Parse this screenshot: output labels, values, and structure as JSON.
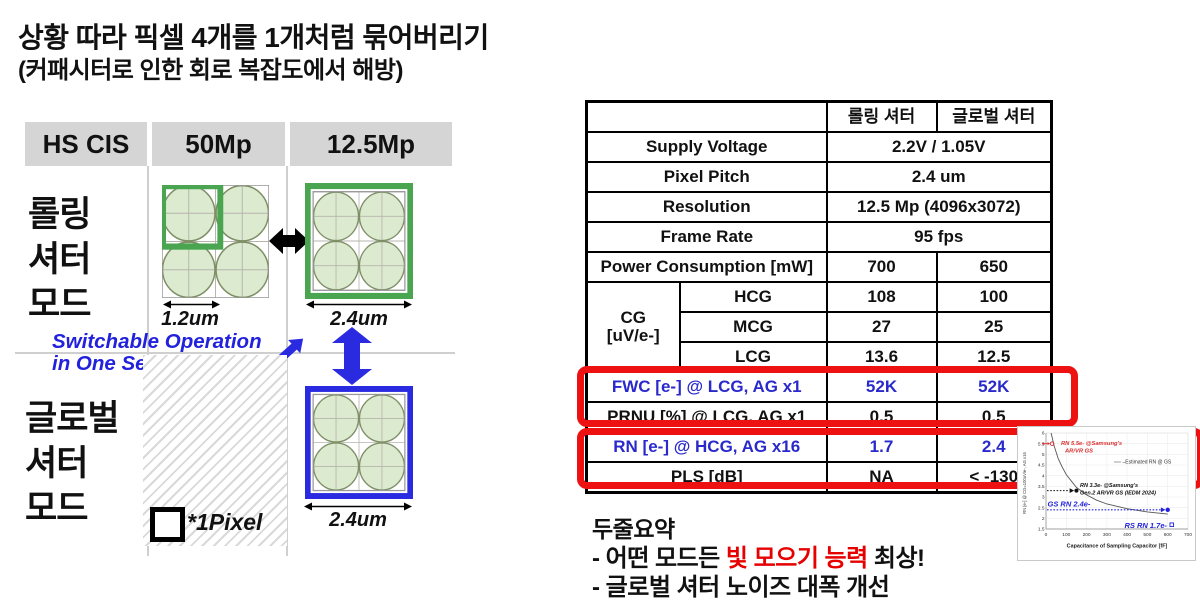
{
  "title": {
    "line1": "상황 따라 픽셀 4개를 1개처럼 묶어버리기",
    "line2": "(커패시터로 인한 회로 복잡도에서 해방)"
  },
  "diagram": {
    "header": {
      "product": "HS CIS",
      "mode_full": "50Mp",
      "mode_binned": "12.5Mp"
    },
    "rolling_label": "롤링\n셔터\n모드",
    "global_label": "글로벌\n셔터\n모드",
    "switchable_line1": "Switchable Operation",
    "switchable_line2": "in One Sensor",
    "pitch_small": "1.2um",
    "pitch_large_rolling": "2.4um",
    "pitch_large_global": "2.4um",
    "pixel_legend": "*1Pixel",
    "colors": {
      "rolling_highlight_green": "#4aa550",
      "global_highlight_blue": "#2a2ae0",
      "note_blue": "#2222dd",
      "circle_fill": "#dcead0",
      "header_gray": "#d5d5d5"
    }
  },
  "table": {
    "col_rolling": "롤링 셔터",
    "col_global": "글로벌 셔터",
    "rows": {
      "supply": {
        "label": "Supply Voltage",
        "value": "2.2V / 1.05V"
      },
      "pitch": {
        "label": "Pixel Pitch",
        "value": "2.4 um"
      },
      "resolution": {
        "label": "Resolution",
        "value": "12.5 Mp (4096x3072)"
      },
      "framerate": {
        "label": "Frame Rate",
        "value": "95 fps"
      },
      "power": {
        "label": "Power Consumption [mW]",
        "rolling": "700",
        "global": "650"
      },
      "cg": {
        "label": "CG\n[uV/e-]",
        "hcg": {
          "label": "HCG",
          "rolling": "108",
          "global": "100"
        },
        "mcg": {
          "label": "MCG",
          "rolling": "27",
          "global": "25"
        },
        "lcg": {
          "label": "LCG",
          "rolling": "13.6",
          "global": "12.5"
        }
      },
      "fwc": {
        "label": "FWC [e-] @ LCG, AG x1",
        "rolling": "52K",
        "global": "52K"
      },
      "prnu": {
        "label": "PRNU [%] @ LCG, AG x1",
        "rolling": "0.5",
        "global": "0.5"
      },
      "rn": {
        "label": "RN [e-] @ HCG, AG x16",
        "rolling": "1.7",
        "global": "2.4"
      },
      "pls": {
        "label": "PLS [dB]",
        "rolling": "NA",
        "global": "< -130"
      }
    },
    "highlight_color": "#ee1111",
    "blue_text_color": "#2a2acc"
  },
  "summary": {
    "heading": "두줄요약",
    "line1_prefix": "- 어떤 모드든 ",
    "line1_red": "빛 모으기 능력",
    "line1_suffix": " 최상!",
    "line2": "- 글로벌 셔터 노이즈 대폭 개선",
    "red_color": "#e60000"
  },
  "chart_data": {
    "type": "line",
    "xlabel": "Capacitance of Sampling Capacitor [fF]",
    "ylabel": "RN [e-] @ CG=100uV/e-, AG x16",
    "xlim": [
      0,
      700
    ],
    "ylim": [
      1.5,
      6
    ],
    "xticks": [
      "0",
      "100",
      "200",
      "300",
      "400",
      "500",
      "600",
      "700"
    ],
    "yticks": [
      "6",
      "5.5",
      "5",
      "4.5",
      "4",
      "3.5",
      "3",
      "2.5",
      "2",
      "1.5"
    ],
    "grid": true,
    "legend_position": "upper right",
    "estimated_curve": [
      [
        25,
        6
      ],
      [
        40,
        5.4
      ],
      [
        60,
        4.8
      ],
      [
        80,
        4.4
      ],
      [
        100,
        4.05
      ],
      [
        150,
        3.45
      ],
      [
        200,
        3.1
      ],
      [
        250,
        2.85
      ],
      [
        300,
        2.67
      ],
      [
        400,
        2.45
      ],
      [
        500,
        2.3
      ],
      [
        600,
        2.2
      ]
    ],
    "markers": [
      {
        "id": "marker-arvr",
        "x": 30,
        "y": 5.5,
        "label": "RN 5.5e- @Samsung's AR/VR GS",
        "color": "#d83030"
      },
      {
        "id": "marker-gen2",
        "x": 150,
        "y": 3.3,
        "label": "RN 3.3e- @Samsung's Gen.2 AR/VR GS (IEDM 2024)",
        "color": "#111111"
      },
      {
        "id": "marker-gs",
        "x": 600,
        "y": 2.4,
        "label": "GS RN 2.4e-",
        "color": "#2222dd"
      },
      {
        "id": "marker-rs",
        "x": 620,
        "y": 1.7,
        "label": "RS RN 1.7e-",
        "color": "#2222dd"
      }
    ],
    "annotations": {
      "arvr_line1": "RN 5.5e- @Samsung's",
      "arvr_line2": "AR/VR GS",
      "legend": "–Estimated RN @ GS",
      "gen2_line1": "RN 3.3e- @Samsung's",
      "gen2_line2": "Gen.2 AR/VR GS (IEDM 2024)",
      "gs": "GS RN 2.4e-",
      "rs": "RS RN 1.7e-"
    }
  }
}
